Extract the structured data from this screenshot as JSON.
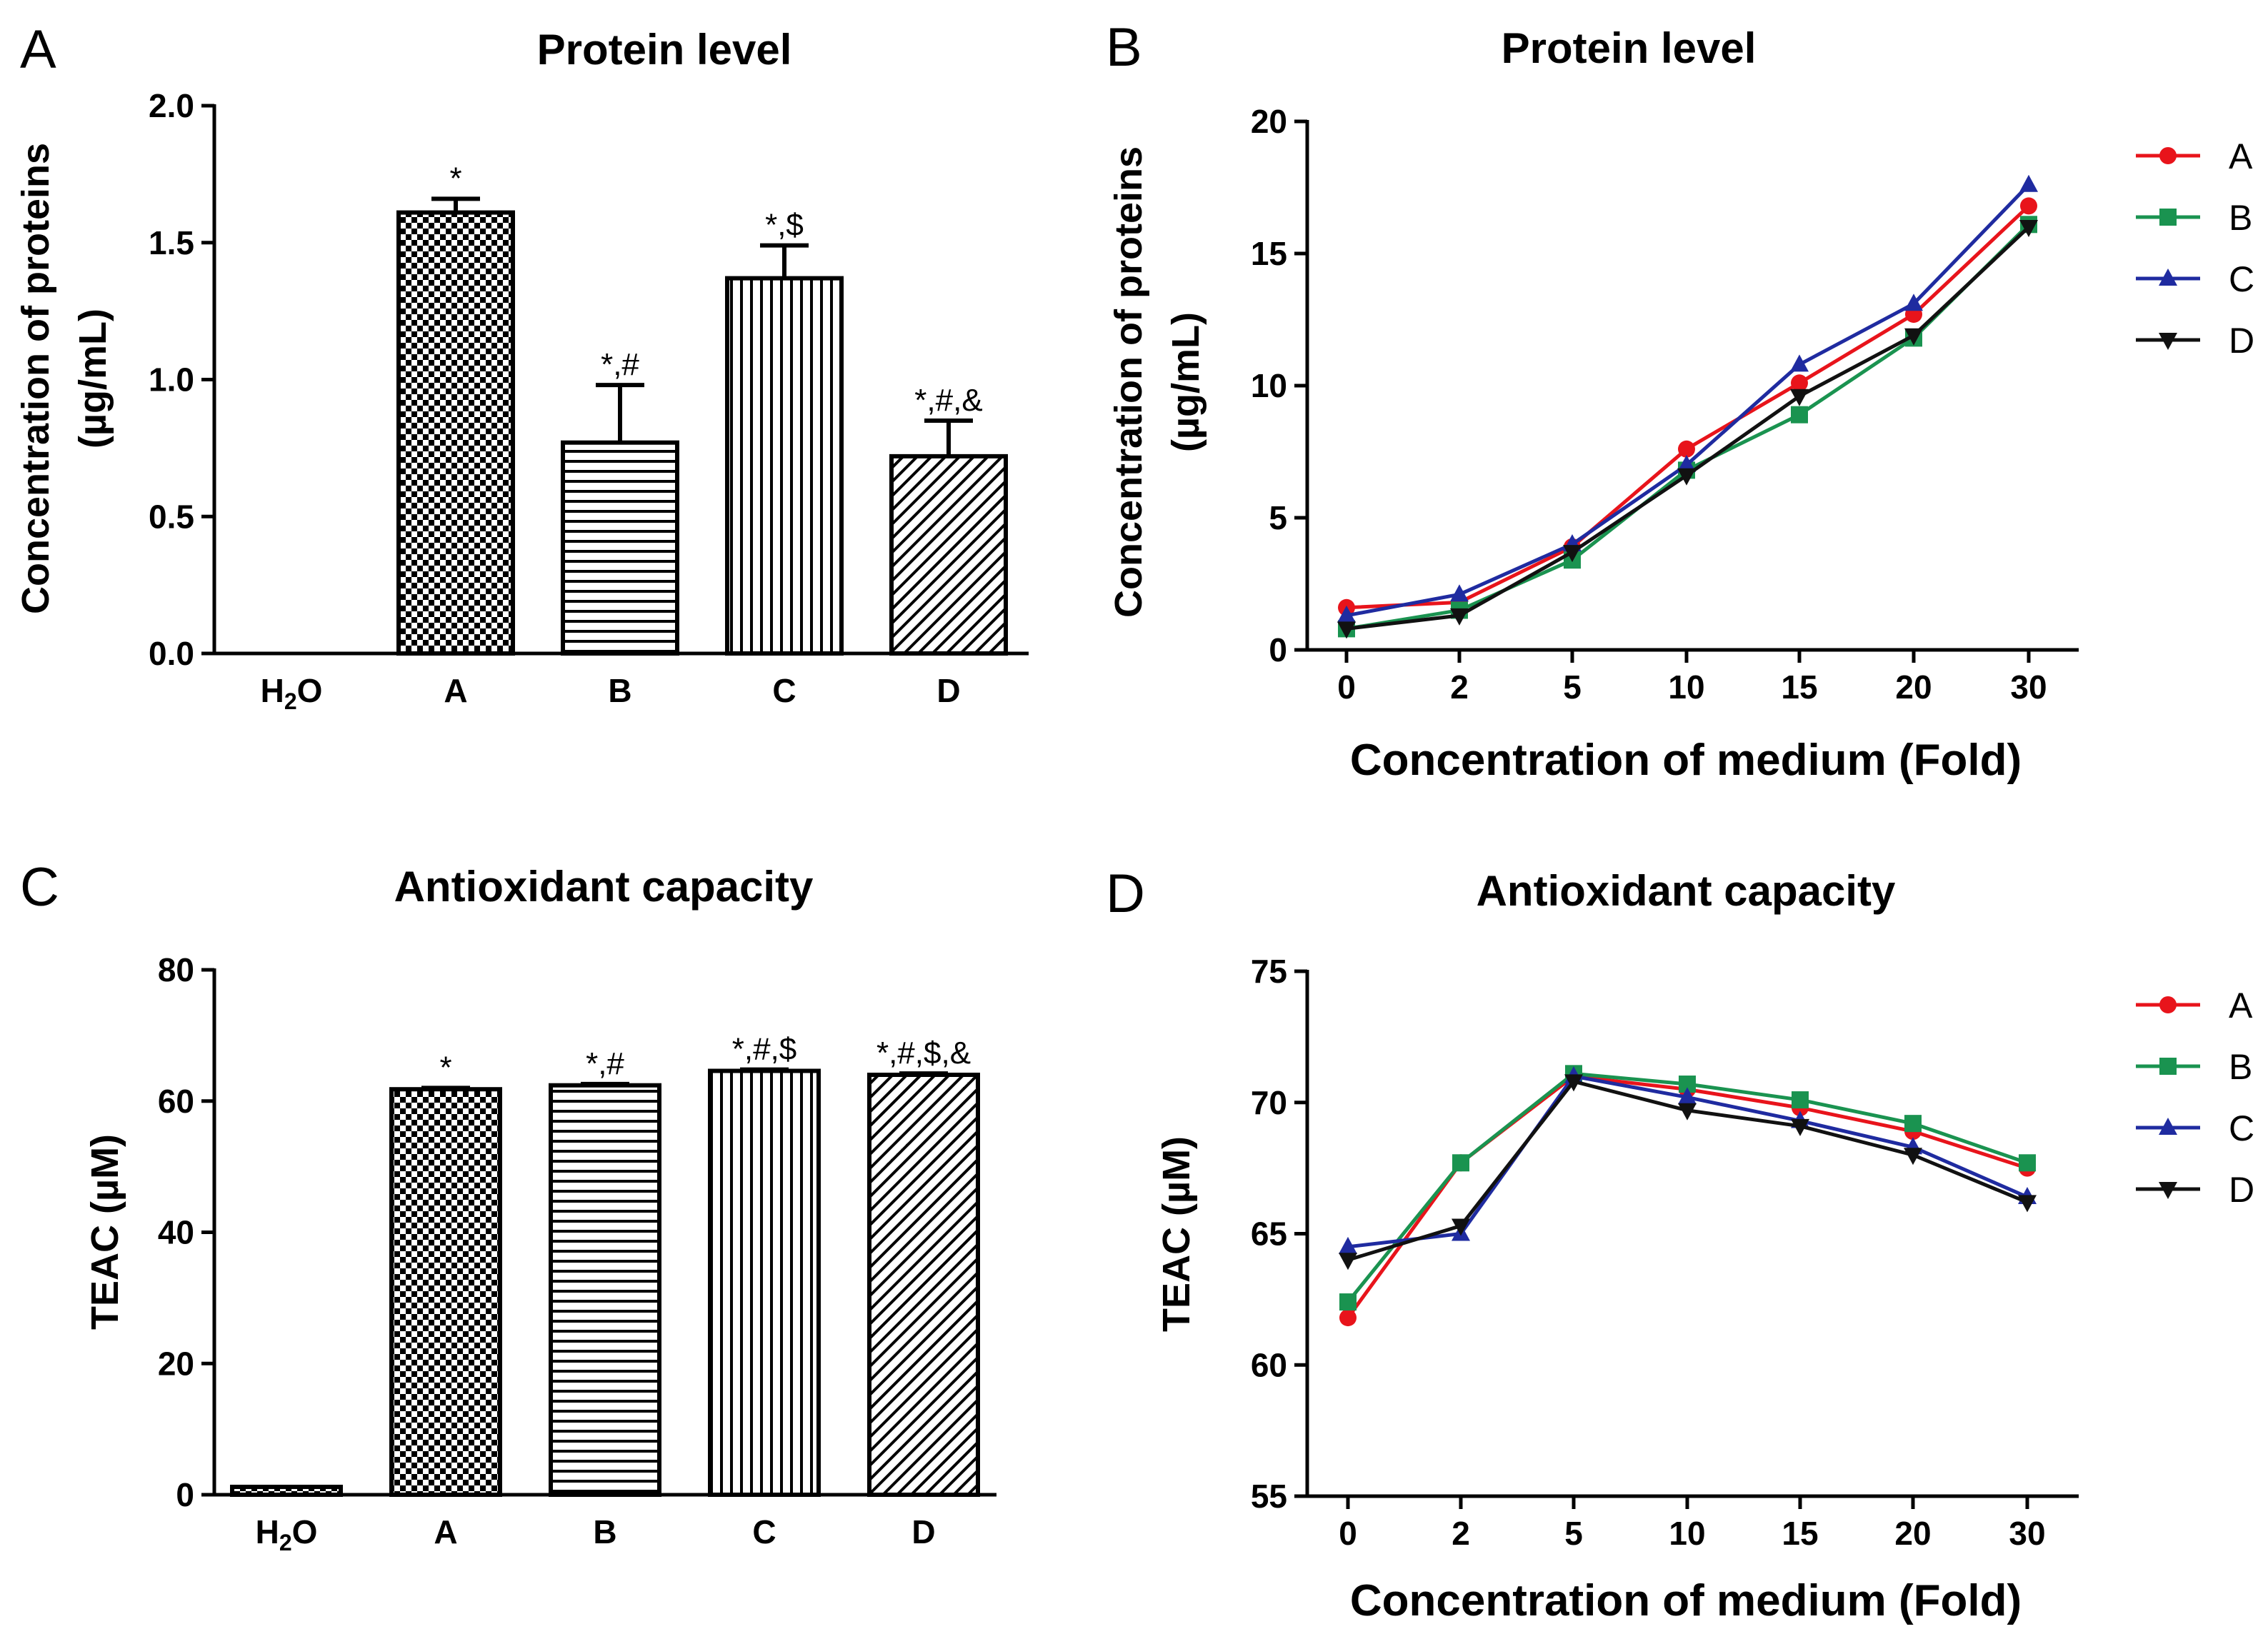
{
  "chart_data": [
    {
      "panel": "A",
      "type": "bar",
      "title": "Protein level",
      "xlabel": "",
      "ylabel": "Concentration of proteins",
      "ylabel_unit": "(µg/mL)",
      "ylim": [
        0,
        2.0
      ],
      "yticks": [
        "0.0",
        "0.5",
        "1.0",
        "1.5",
        "2.0"
      ],
      "categories": [
        {
          "main": "H",
          "sub": "2",
          "tail": "O"
        },
        {
          "main": "A",
          "sub": "",
          "tail": ""
        },
        {
          "main": "B",
          "sub": "",
          "tail": ""
        },
        {
          "main": "C",
          "sub": "",
          "tail": ""
        },
        {
          "main": "D",
          "sub": "",
          "tail": ""
        }
      ],
      "values": [
        0,
        1.61,
        0.77,
        1.37,
        0.72
      ],
      "errors": [
        0,
        0.05,
        0.21,
        0.12,
        0.13
      ],
      "patterns": [
        "none",
        "check",
        "hlines",
        "vlines",
        "diag"
      ],
      "annotations": [
        "",
        "*",
        "*,#",
        "*,$",
        "*,#,&"
      ]
    },
    {
      "panel": "B",
      "type": "line",
      "title": "Protein level",
      "xlabel": "Concentration of medium (Fold)",
      "ylabel": "Concentration of proteins",
      "ylabel_unit": "(µg/mL)",
      "x": [
        "0",
        "2",
        "5",
        "10",
        "15",
        "20",
        "30"
      ],
      "ylim": [
        0,
        20
      ],
      "yticks": [
        "0",
        "5",
        "10",
        "15",
        "20"
      ],
      "series": [
        {
          "name": "A",
          "color": "#e8141b",
          "marker": "circle",
          "values": [
            1.6,
            1.8,
            3.9,
            7.6,
            10.1,
            12.7,
            16.8
          ]
        },
        {
          "name": "B",
          "color": "#1a9350",
          "marker": "square",
          "values": [
            0.8,
            1.5,
            3.4,
            6.8,
            8.9,
            11.8,
            16.1
          ]
        },
        {
          "name": "C",
          "color": "#1f2ba0",
          "marker": "triangle-up",
          "values": [
            1.3,
            2.1,
            4.0,
            7.0,
            10.8,
            13.1,
            17.6
          ]
        },
        {
          "name": "D",
          "color": "#111111",
          "marker": "triangle-down",
          "values": [
            0.8,
            1.3,
            3.7,
            6.6,
            9.6,
            11.9,
            16.0
          ]
        }
      ]
    },
    {
      "panel": "C",
      "type": "bar",
      "title": "Antioxidant capacity",
      "xlabel": "",
      "ylabel": "TEAC (µM)",
      "ylabel_unit": "",
      "ylim": [
        0,
        80
      ],
      "yticks": [
        "0",
        "20",
        "40",
        "60",
        "80"
      ],
      "categories": [
        {
          "main": "H",
          "sub": "2",
          "tail": "O"
        },
        {
          "main": "A",
          "sub": "",
          "tail": ""
        },
        {
          "main": "B",
          "sub": "",
          "tail": ""
        },
        {
          "main": "C",
          "sub": "",
          "tail": ""
        },
        {
          "main": "D",
          "sub": "",
          "tail": ""
        }
      ],
      "values": [
        1.2,
        61.8,
        62.4,
        64.6,
        64.0
      ],
      "errors": [
        0,
        0.2,
        0.2,
        0.2,
        0.2
      ],
      "patterns": [
        "check",
        "check",
        "hlines",
        "vlines",
        "diag"
      ],
      "annotations": [
        "",
        "*",
        "*,#",
        "*,#,$",
        "*,#,$,&"
      ]
    },
    {
      "panel": "D",
      "type": "line",
      "title": "Antioxidant capacity",
      "xlabel": "Concentration of medium (Fold)",
      "ylabel": "TEAC (µM)",
      "ylabel_unit": "",
      "x": [
        "0",
        "2",
        "5",
        "10",
        "15",
        "20",
        "30"
      ],
      "ylim": [
        55,
        75
      ],
      "yticks": [
        "55",
        "60",
        "65",
        "70",
        "75"
      ],
      "series": [
        {
          "name": "A",
          "color": "#e8141b",
          "marker": "circle",
          "values": [
            61.8,
            67.7,
            71.0,
            70.5,
            69.8,
            68.9,
            67.5
          ]
        },
        {
          "name": "B",
          "color": "#1a9350",
          "marker": "square",
          "values": [
            62.4,
            67.7,
            71.1,
            70.7,
            70.1,
            69.2,
            67.7
          ]
        },
        {
          "name": "C",
          "color": "#1f2ba0",
          "marker": "triangle-up",
          "values": [
            64.5,
            65.0,
            71.0,
            70.2,
            69.3,
            68.3,
            66.4
          ]
        },
        {
          "name": "D",
          "color": "#111111",
          "marker": "triangle-down",
          "values": [
            64.0,
            65.3,
            70.8,
            69.7,
            69.1,
            68.0,
            66.2
          ]
        }
      ]
    }
  ]
}
